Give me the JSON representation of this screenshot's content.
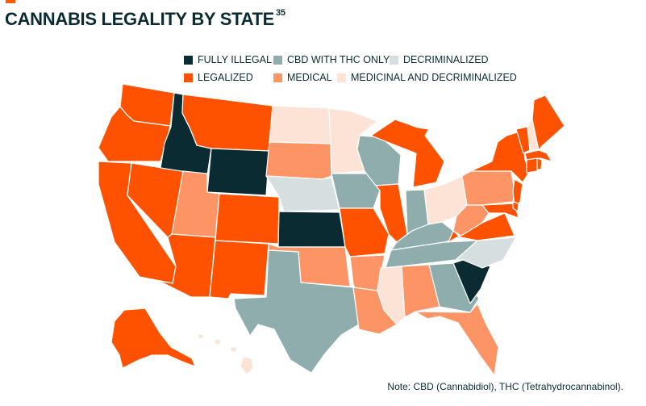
{
  "header": {
    "title": "CANNABIS LEGALITY BY STATE",
    "footnote_ref": "35"
  },
  "categories": {
    "fully_illegal": {
      "label": "FULLY ILLEGAL",
      "color": "#0b2b33"
    },
    "cbd_thc": {
      "label": "CBD WITH THC ONLY",
      "color": "#8fadad"
    },
    "decriminalized": {
      "label": "DECRIMINALIZED",
      "color": "#d5dfdf"
    },
    "legalized": {
      "label": "LEGALIZED",
      "color": "#ff5200"
    },
    "medical": {
      "label": "MEDICAL",
      "color": "#fd9466"
    },
    "med_decrim": {
      "label": "MEDICINAL AND DECRIMINALIZED",
      "color": "#fde3d5"
    }
  },
  "states": {
    "WA": "legalized",
    "OR": "legalized",
    "CA": "legalized",
    "NV": "legalized",
    "ID": "fully_illegal",
    "MT": "legalized",
    "WY": "fully_illegal",
    "UT": "medical",
    "AZ": "legalized",
    "CO": "legalized",
    "NM": "legalized",
    "ND": "med_decrim",
    "SD": "medical",
    "NE": "decriminalized",
    "KS": "fully_illegal",
    "OK": "medical",
    "TX": "cbd_thc",
    "MN": "med_decrim",
    "IA": "cbd_thc",
    "MO": "legalized",
    "AR": "medical",
    "LA": "medical",
    "WI": "cbd_thc",
    "IL": "legalized",
    "MI": "legalized",
    "IN": "cbd_thc",
    "OH": "med_decrim",
    "KY": "cbd_thc",
    "TN": "cbd_thc",
    "MS": "med_decrim",
    "AL": "medical",
    "GA": "cbd_thc",
    "FL": "medical",
    "SC": "fully_illegal",
    "NC": "decriminalized",
    "VA": "legalized",
    "WV": "medical",
    "PA": "medical",
    "NY": "legalized",
    "VT": "legalized",
    "NH": "med_decrim",
    "ME": "legalized",
    "MA": "legalized",
    "CT": "legalized",
    "RI": "legalized",
    "NJ": "legalized",
    "DE": "legalized",
    "MD": "legalized",
    "AK": "legalized",
    "HI": "med_decrim"
  },
  "note": "Note: CBD (Cannabidiol), THC (Tetrahydrocannabinol)."
}
